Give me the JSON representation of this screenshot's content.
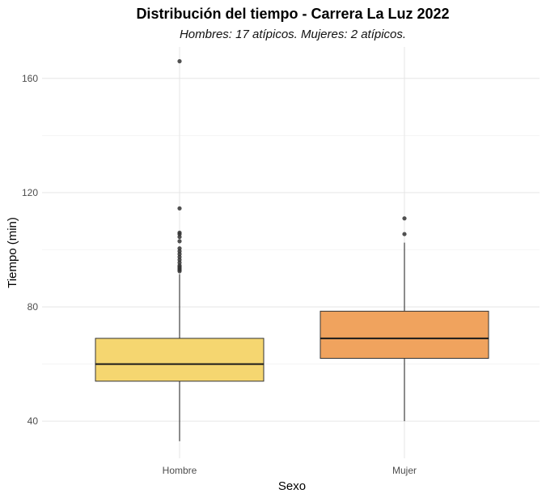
{
  "chart_data": {
    "type": "boxplot",
    "title": "Distribución del tiempo - Carrera La Luz 2022",
    "subtitle": "Hombres: 17 atípicos. Mujeres: 2 atípicos.",
    "xlabel": "Sexo",
    "ylabel": "Tiempo (min)",
    "ylim": [
      27,
      171
    ],
    "yticks": [
      40,
      80,
      120,
      160
    ],
    "grid": true,
    "categories": [
      "Hombre",
      "Mujer"
    ],
    "boxes": [
      {
        "name": "Hombre",
        "color": "#F5D670",
        "whisker_low": 33,
        "q1": 54,
        "median": 60,
        "q3": 69,
        "whisker_high": 91.5,
        "outliers": [
          92.5,
          93,
          93.5,
          94,
          94.5,
          95.5,
          96.5,
          97.5,
          98.5,
          99.5,
          100.5,
          103,
          104.5,
          105.5,
          106,
          114.5,
          166
        ]
      },
      {
        "name": "Mujer",
        "color": "#F0A35E",
        "whisker_low": 40,
        "q1": 62,
        "median": 69,
        "q3": 78.5,
        "whisker_high": 102.5,
        "outliers": [
          105.5,
          111
        ]
      }
    ]
  }
}
